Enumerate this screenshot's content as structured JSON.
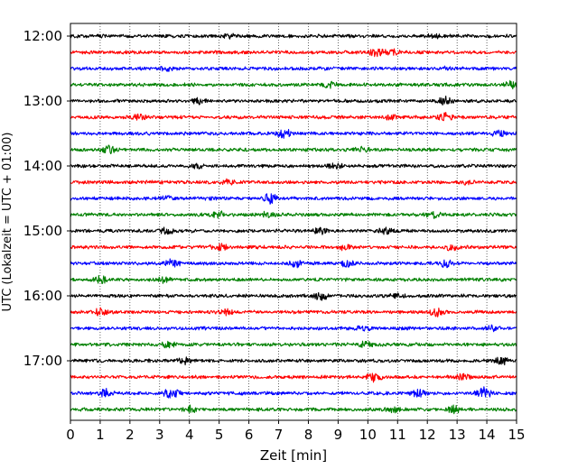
{
  "chart_data": {
    "type": "line",
    "xlabel": "Zeit  [min]",
    "ylabel": "UTC (Lokalzeit = UTC + 01:00)",
    "xlim": [
      0,
      15
    ],
    "x_ticks": [
      0,
      1,
      2,
      3,
      4,
      5,
      6,
      7,
      8,
      9,
      10,
      11,
      12,
      13,
      14,
      15
    ],
    "grid": {
      "x": true,
      "y": false,
      "style": "dotted"
    },
    "y_tick_labels": [
      "12:00",
      "13:00",
      "14:00",
      "15:00",
      "16:00",
      "17:00"
    ],
    "trace_interval_min": 15,
    "trace_count": 24,
    "trace_colors": [
      "#000000",
      "#ff0000",
      "#0000ff",
      "#008000"
    ],
    "traces": [
      {
        "start": "12:00",
        "color": "#000000",
        "events": [
          [
            5.4,
            0.8
          ],
          [
            12.2,
            0.7
          ]
        ]
      },
      {
        "start": "12:15",
        "color": "#ff0000",
        "events": [
          [
            10.3,
            1.6
          ],
          [
            10.8,
            1.0
          ]
        ]
      },
      {
        "start": "12:30",
        "color": "#0000ff",
        "events": [
          [
            3.2,
            0.7
          ],
          [
            12.8,
            0.8
          ]
        ]
      },
      {
        "start": "12:45",
        "color": "#008000",
        "events": [
          [
            8.7,
            1.2
          ],
          [
            14.8,
            1.4
          ]
        ]
      },
      {
        "start": "13:00",
        "color": "#000000",
        "events": [
          [
            12.6,
            1.6
          ],
          [
            4.3,
            0.9
          ]
        ]
      },
      {
        "start": "13:15",
        "color": "#ff0000",
        "events": [
          [
            2.3,
            1.2
          ],
          [
            10.8,
            1.0
          ],
          [
            12.6,
            1.4
          ]
        ]
      },
      {
        "start": "13:30",
        "color": "#0000ff",
        "events": [
          [
            7.2,
            2.0
          ],
          [
            14.4,
            1.0
          ]
        ]
      },
      {
        "start": "13:45",
        "color": "#008000",
        "events": [
          [
            1.3,
            1.5
          ],
          [
            9.8,
            1.2
          ]
        ]
      },
      {
        "start": "14:00",
        "color": "#000000",
        "events": [
          [
            4.2,
            1.0
          ],
          [
            8.9,
            1.1
          ]
        ]
      },
      {
        "start": "14:15",
        "color": "#ff0000",
        "events": [
          [
            5.3,
            1.0
          ],
          [
            13.3,
            0.9
          ]
        ]
      },
      {
        "start": "14:30",
        "color": "#0000ff",
        "events": [
          [
            6.7,
            2.0
          ],
          [
            3.2,
            0.9
          ]
        ]
      },
      {
        "start": "14:45",
        "color": "#008000",
        "events": [
          [
            5.0,
            1.2
          ],
          [
            6.6,
            1.0
          ],
          [
            12.2,
            1.0
          ]
        ]
      },
      {
        "start": "15:00",
        "color": "#000000",
        "events": [
          [
            3.2,
            1.2
          ],
          [
            8.4,
            1.1
          ],
          [
            10.6,
            1.0
          ]
        ]
      },
      {
        "start": "15:15",
        "color": "#ff0000",
        "events": [
          [
            5.0,
            1.6
          ],
          [
            9.2,
            1.0
          ],
          [
            12.8,
            1.2
          ]
        ]
      },
      {
        "start": "15:30",
        "color": "#0000ff",
        "events": [
          [
            3.4,
            1.7
          ],
          [
            7.6,
            1.7
          ],
          [
            9.3,
            1.3
          ],
          [
            12.6,
            1.4
          ]
        ]
      },
      {
        "start": "15:45",
        "color": "#008000",
        "events": [
          [
            1.0,
            1.4
          ],
          [
            3.1,
            1.0
          ]
        ]
      },
      {
        "start": "16:00",
        "color": "#000000",
        "events": [
          [
            8.4,
            1.8
          ],
          [
            11.0,
            1.0
          ]
        ]
      },
      {
        "start": "16:15",
        "color": "#ff0000",
        "events": [
          [
            1.0,
            1.5
          ],
          [
            5.2,
            1.1
          ],
          [
            12.3,
            1.6
          ]
        ]
      },
      {
        "start": "16:30",
        "color": "#0000ff",
        "events": [
          [
            9.8,
            1.2
          ],
          [
            14.2,
            1.0
          ]
        ]
      },
      {
        "start": "16:45",
        "color": "#008000",
        "events": [
          [
            3.3,
            1.2
          ],
          [
            10.0,
            1.5
          ]
        ]
      },
      {
        "start": "17:00",
        "color": "#000000",
        "events": [
          [
            3.8,
            1.5
          ],
          [
            14.5,
            1.6
          ]
        ]
      },
      {
        "start": "17:15",
        "color": "#ff0000",
        "events": [
          [
            10.2,
            1.5
          ],
          [
            13.2,
            1.2
          ]
        ]
      },
      {
        "start": "17:30",
        "color": "#0000ff",
        "events": [
          [
            1.2,
            1.6
          ],
          [
            3.4,
            2.2
          ],
          [
            11.7,
            1.4
          ],
          [
            13.9,
            2.6
          ]
        ]
      },
      {
        "start": "17:45",
        "color": "#008000",
        "events": [
          [
            4.0,
            1.3
          ],
          [
            10.8,
            1.6
          ],
          [
            12.9,
            1.3
          ]
        ]
      }
    ]
  }
}
